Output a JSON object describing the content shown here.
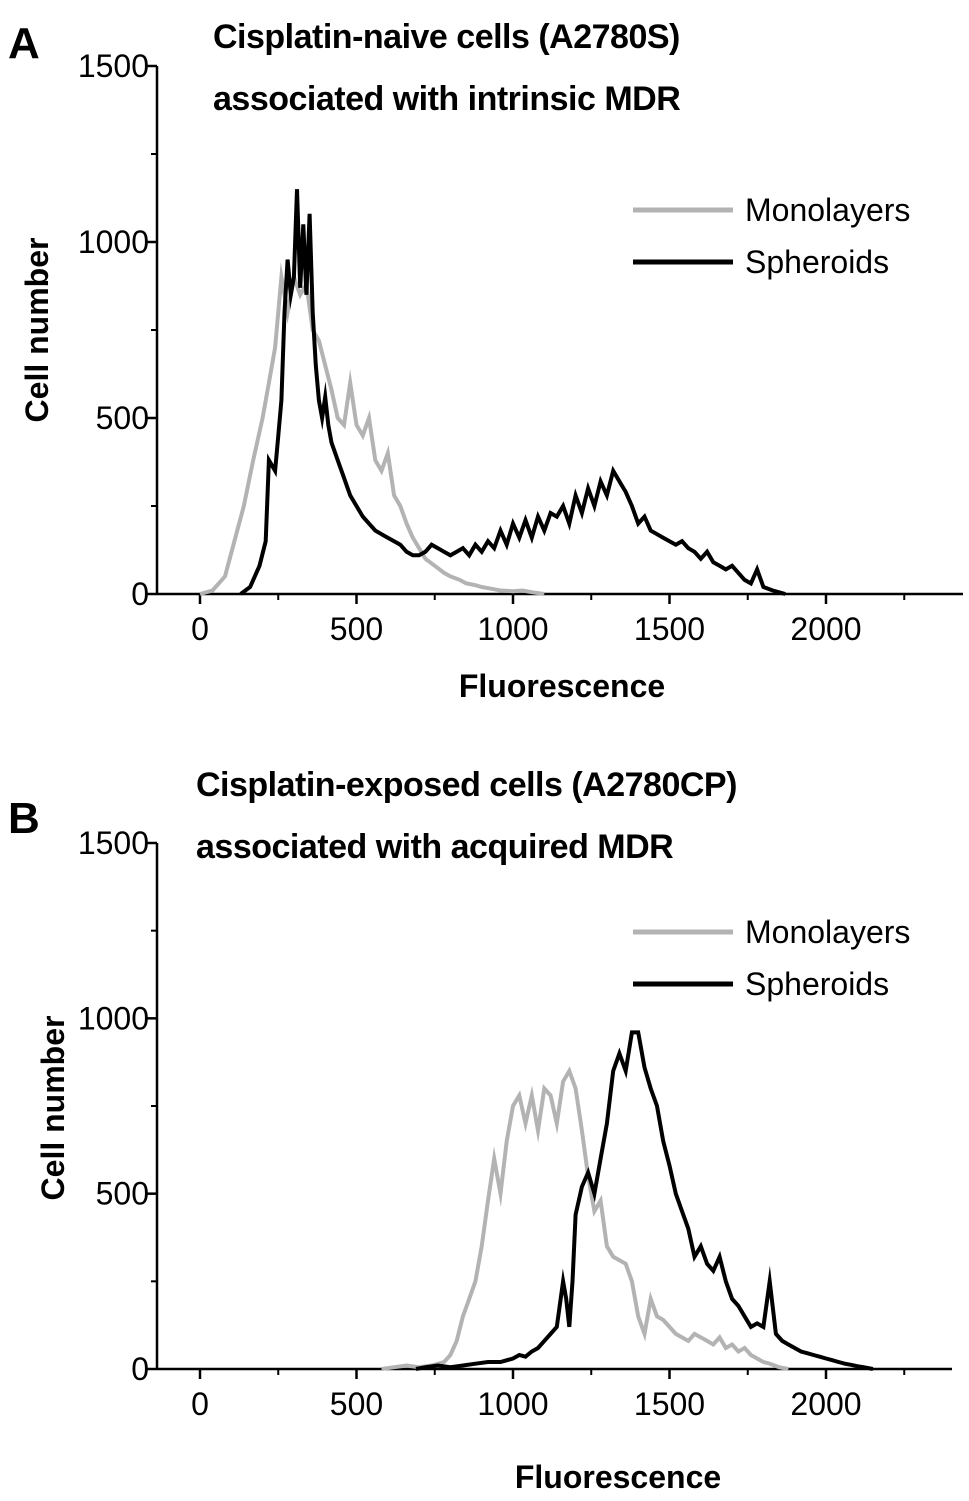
{
  "chart_data": [
    {
      "panel": "A",
      "type": "line",
      "title": [
        "Cisplatin-naive cells (A2780S)",
        "associated with intrinsic MDR"
      ],
      "xlabel": "Fluorescence",
      "ylabel": "Cell number",
      "xlim": [
        -120,
        2400
      ],
      "ylim": [
        0,
        1500
      ],
      "xticks": [
        0,
        500,
        1000,
        1500,
        2000
      ],
      "xtick_labels": [
        "0",
        "500",
        "1000",
        "1500",
        "2000"
      ],
      "yticks": [
        0,
        500,
        1000,
        1500
      ],
      "ytick_labels": [
        "0",
        "500",
        "1000",
        "1500"
      ],
      "legend": "top-right",
      "grid": false,
      "series": [
        {
          "name": "Monolayers",
          "color": "#b3b3b3",
          "x": [
            0,
            40,
            80,
            110,
            140,
            170,
            200,
            220,
            240,
            260,
            280,
            300,
            320,
            340,
            360,
            380,
            400,
            420,
            440,
            460,
            480,
            500,
            520,
            540,
            560,
            580,
            600,
            620,
            640,
            660,
            680,
            700,
            720,
            750,
            780,
            800,
            830,
            850,
            880,
            900,
            930,
            960,
            1000,
            1030,
            1060,
            1100
          ],
          "y": [
            0,
            10,
            50,
            150,
            250,
            380,
            500,
            600,
            700,
            900,
            800,
            900,
            850,
            880,
            750,
            720,
            650,
            580,
            500,
            480,
            600,
            480,
            450,
            500,
            380,
            350,
            400,
            280,
            250,
            200,
            160,
            130,
            100,
            80,
            60,
            50,
            40,
            30,
            25,
            20,
            15,
            10,
            8,
            10,
            5,
            0
          ]
        },
        {
          "name": "Spheroids",
          "color": "#000000",
          "x": [
            130,
            160,
            190,
            210,
            220,
            240,
            250,
            260,
            270,
            280,
            290,
            300,
            310,
            320,
            330,
            340,
            350,
            360,
            370,
            380,
            390,
            400,
            410,
            420,
            440,
            460,
            480,
            500,
            520,
            540,
            560,
            580,
            600,
            620,
            640,
            660,
            680,
            700,
            720,
            740,
            760,
            780,
            800,
            820,
            840,
            860,
            880,
            900,
            920,
            940,
            960,
            980,
            1000,
            1020,
            1040,
            1060,
            1080,
            1100,
            1120,
            1140,
            1160,
            1180,
            1200,
            1220,
            1240,
            1260,
            1280,
            1300,
            1320,
            1340,
            1360,
            1380,
            1400,
            1420,
            1440,
            1460,
            1480,
            1500,
            1520,
            1540,
            1560,
            1580,
            1600,
            1620,
            1640,
            1660,
            1680,
            1700,
            1720,
            1740,
            1760,
            1780,
            1800,
            1830,
            1870
          ],
          "y": [
            0,
            20,
            80,
            150,
            380,
            350,
            450,
            550,
            800,
            950,
            850,
            900,
            1150,
            870,
            1050,
            850,
            1080,
            800,
            650,
            550,
            500,
            560,
            480,
            430,
            380,
            330,
            280,
            250,
            220,
            200,
            180,
            170,
            160,
            150,
            140,
            120,
            110,
            110,
            120,
            140,
            130,
            120,
            110,
            120,
            130,
            110,
            140,
            120,
            150,
            130,
            180,
            140,
            200,
            160,
            210,
            160,
            220,
            180,
            230,
            220,
            250,
            200,
            280,
            230,
            300,
            250,
            320,
            280,
            350,
            320,
            290,
            250,
            200,
            220,
            180,
            170,
            160,
            150,
            140,
            150,
            130,
            120,
            100,
            120,
            90,
            80,
            70,
            80,
            60,
            40,
            30,
            70,
            20,
            10,
            0
          ]
        }
      ]
    },
    {
      "panel": "B",
      "type": "line",
      "title": [
        "Cisplatin-exposed cells (A2780CP)",
        "associated with acquired MDR"
      ],
      "xlabel": "Fluorescence",
      "ylabel": "Cell number",
      "xlim": [
        -120,
        2400
      ],
      "ylim": [
        0,
        1500
      ],
      "xticks": [
        0,
        500,
        1000,
        1500,
        2000
      ],
      "xtick_labels": [
        "0",
        "500",
        "1000",
        "1500",
        "2000"
      ],
      "yticks": [
        0,
        500,
        1000,
        1500
      ],
      "ytick_labels": [
        "0",
        "500",
        "1000",
        "1500"
      ],
      "legend": "top-right",
      "grid": false,
      "series": [
        {
          "name": "Monolayers",
          "color": "#b3b3b3",
          "x": [
            580,
            620,
            660,
            700,
            740,
            780,
            800,
            820,
            840,
            860,
            880,
            900,
            920,
            940,
            960,
            980,
            1000,
            1020,
            1040,
            1060,
            1080,
            1100,
            1120,
            1140,
            1160,
            1180,
            1200,
            1220,
            1240,
            1260,
            1280,
            1300,
            1320,
            1340,
            1360,
            1380,
            1400,
            1420,
            1440,
            1460,
            1480,
            1500,
            1520,
            1540,
            1560,
            1580,
            1600,
            1620,
            1640,
            1660,
            1680,
            1700,
            1720,
            1740,
            1760,
            1780,
            1800,
            1820,
            1850,
            1880
          ],
          "y": [
            0,
            5,
            10,
            5,
            10,
            20,
            40,
            80,
            150,
            200,
            250,
            350,
            480,
            600,
            500,
            650,
            750,
            780,
            700,
            780,
            680,
            800,
            780,
            700,
            820,
            850,
            800,
            680,
            550,
            450,
            480,
            350,
            320,
            310,
            300,
            250,
            150,
            100,
            200,
            150,
            140,
            120,
            100,
            90,
            80,
            100,
            90,
            80,
            70,
            90,
            60,
            70,
            50,
            60,
            40,
            30,
            20,
            15,
            5,
            0
          ]
        },
        {
          "name": "Spheroids",
          "color": "#000000",
          "x": [
            690,
            720,
            760,
            800,
            840,
            880,
            920,
            960,
            1000,
            1020,
            1040,
            1060,
            1080,
            1100,
            1120,
            1140,
            1160,
            1170,
            1180,
            1190,
            1200,
            1220,
            1240,
            1260,
            1280,
            1300,
            1320,
            1340,
            1360,
            1380,
            1400,
            1420,
            1440,
            1460,
            1480,
            1500,
            1520,
            1540,
            1560,
            1580,
            1600,
            1620,
            1640,
            1660,
            1680,
            1700,
            1720,
            1740,
            1760,
            1780,
            1800,
            1820,
            1840,
            1860,
            1880,
            1900,
            1920,
            1940,
            1960,
            1980,
            2000,
            2020,
            2040,
            2060,
            2080,
            2100,
            2120,
            2150
          ],
          "y": [
            0,
            5,
            10,
            5,
            10,
            15,
            20,
            20,
            30,
            40,
            35,
            50,
            60,
            80,
            100,
            120,
            250,
            200,
            120,
            250,
            440,
            520,
            560,
            500,
            600,
            700,
            850,
            900,
            850,
            960,
            960,
            860,
            800,
            750,
            650,
            580,
            500,
            450,
            400,
            320,
            350,
            300,
            280,
            320,
            250,
            200,
            180,
            150,
            120,
            130,
            120,
            250,
            100,
            80,
            70,
            60,
            50,
            45,
            40,
            35,
            30,
            25,
            20,
            15,
            12,
            8,
            5,
            0
          ]
        }
      ]
    }
  ]
}
